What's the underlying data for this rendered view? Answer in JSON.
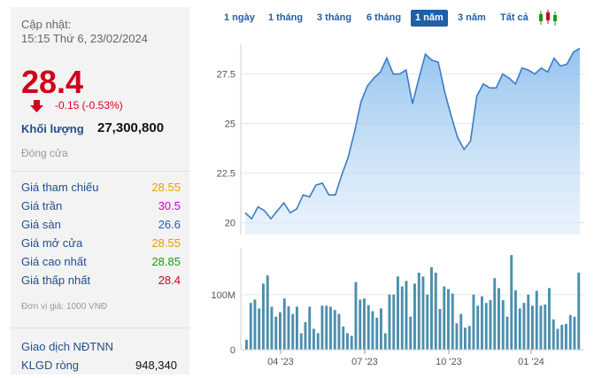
{
  "stock": {
    "updated_label": "Cập nhật:",
    "updated_time": "15:15 Thứ 6, 23/02/2024",
    "price": "28.4",
    "change": "-0.15 (-0.53%)",
    "volume_label": "Khối lượng",
    "volume": "27,300,800",
    "status": "Đóng cửa",
    "unit_note": "Đơn vị giá: 1000 VNĐ",
    "foreign_label": "Giao dịch NĐTNN",
    "net_volume_label": "KLGD ròng",
    "net_volume": "948,340"
  },
  "stats": [
    {
      "label": "Giá tham chiếu",
      "value": "28.55",
      "color": "#e8a000"
    },
    {
      "label": "Giá trần",
      "value": "30.5",
      "color": "#cc00cc"
    },
    {
      "label": "Giá sàn",
      "value": "26.6",
      "color": "#1f5fa8"
    },
    {
      "label": "Giá mở cửa",
      "value": "28.55",
      "color": "#e8a000"
    },
    {
      "label": "Giá cao nhất",
      "value": "28.85",
      "color": "#1a9a1a"
    },
    {
      "label": "Giá thấp nhất",
      "value": "28.4",
      "color": "#d0011b"
    }
  ],
  "ranges": {
    "items": [
      "1 ngày",
      "1 tháng",
      "3 tháng",
      "6 tháng",
      "1 năm",
      "3 năm",
      "Tất cả"
    ],
    "active": "1 năm"
  },
  "icons": {
    "change": "arrow-down-icon",
    "chart_type": "candlestick-icon"
  },
  "colors": {
    "price_down": "#d0011b",
    "accent": "#1f5fa8",
    "line": "#3b7cc4",
    "area": "#a9cdf0",
    "volume_bar": "#4b8fae"
  },
  "chart_data": {
    "type": "area",
    "price": {
      "y_ticks": [
        20,
        22.5,
        25,
        27.5
      ],
      "ylim": [
        19.4,
        29
      ],
      "values": [
        20.5,
        20.2,
        20.8,
        20.6,
        20.2,
        20.6,
        21.0,
        20.5,
        20.7,
        21.4,
        21.3,
        21.9,
        22.0,
        21.4,
        21.4,
        22.4,
        23.3,
        24.6,
        26.1,
        26.9,
        27.3,
        27.6,
        28.3,
        27.5,
        27.5,
        27.7,
        26.0,
        27.3,
        28.5,
        28.2,
        28.1,
        26.6,
        25.4,
        24.3,
        23.7,
        24.1,
        26.4,
        27.0,
        26.8,
        26.8,
        27.5,
        27.3,
        27.0,
        27.8,
        27.7,
        27.5,
        27.8,
        27.6,
        28.3,
        27.9,
        28.0,
        28.6,
        28.8
      ]
    },
    "volume": {
      "y_ticks": [
        0,
        "100M"
      ],
      "y_tick_values": [
        0,
        100
      ],
      "ylim": [
        0,
        185
      ],
      "values": [
        18,
        85,
        86,
        75,
        100,
        135,
        78,
        60,
        68,
        95,
        79,
        65,
        78,
        30,
        46,
        78,
        38,
        28,
        80,
        80,
        78,
        72,
        65,
        42,
        30,
        25,
        123,
        91,
        93,
        81,
        70,
        58,
        75,
        30,
        100,
        100,
        133,
        115,
        125,
        60,
        120,
        140,
        133,
        100,
        150,
        140,
        74,
        115,
        110,
        102,
        48,
        65,
        40,
        43,
        100,
        80,
        97,
        85,
        90,
        130,
        112,
        90,
        60,
        172,
        108,
        75,
        85,
        100,
        80,
        107,
        80,
        82,
        112,
        55,
        38,
        45,
        47,
        63,
        60,
        140
      ],
      "bar_values": [
        18,
        85,
        91,
        75,
        120,
        135,
        78,
        60,
        68,
        93,
        79,
        65,
        78,
        30,
        50,
        78,
        38,
        30,
        80,
        80,
        78,
        72,
        65,
        42,
        30,
        25,
        123,
        91,
        93,
        81,
        70,
        58,
        75,
        30,
        100,
        100,
        133,
        115,
        125,
        60,
        120,
        140,
        133,
        100,
        150,
        140,
        74,
        115,
        110,
        102,
        48,
        65,
        40,
        43,
        100,
        80,
        97,
        85,
        90,
        130,
        112,
        90,
        60,
        172,
        108,
        75,
        85,
        100,
        80,
        107,
        80,
        82,
        112,
        55,
        38,
        45,
        47,
        63,
        60,
        140
      ]
    },
    "x_ticks": [
      "04 '23",
      "07 '23",
      "10 '23",
      "01 '24"
    ],
    "grid": true
  }
}
